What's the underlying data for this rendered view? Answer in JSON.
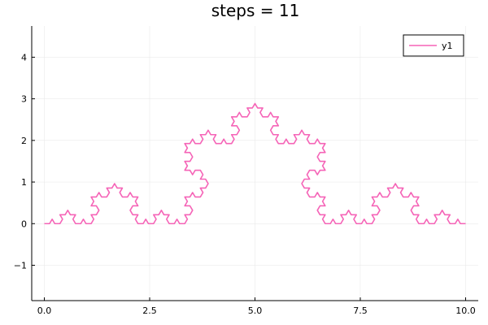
{
  "chart_data": {
    "type": "line",
    "title": "steps = 11",
    "xlabel": "",
    "ylabel": "",
    "xlim": [
      -0.3,
      10.3
    ],
    "ylim": [
      -1.85,
      4.75
    ],
    "xticks": [
      {
        "value": 0.0,
        "label": "0.0"
      },
      {
        "value": 2.5,
        "label": "2.5"
      },
      {
        "value": 5.0,
        "label": "5.0"
      },
      {
        "value": 7.5,
        "label": "7.5"
      },
      {
        "value": 10.0,
        "label": "10.0"
      }
    ],
    "yticks": [
      {
        "value": -1,
        "label": "−1"
      },
      {
        "value": 0,
        "label": "0"
      },
      {
        "value": 1,
        "label": "1"
      },
      {
        "value": 2,
        "label": "2"
      },
      {
        "value": 3,
        "label": "3"
      },
      {
        "value": 4,
        "label": "4"
      }
    ],
    "grid": true,
    "legend_position": "top-right",
    "series": [
      {
        "name": "y1",
        "color": "#f564b7",
        "curve": "koch",
        "steps": 11,
        "start": [
          0,
          0
        ],
        "end": [
          10,
          0
        ]
      }
    ]
  }
}
